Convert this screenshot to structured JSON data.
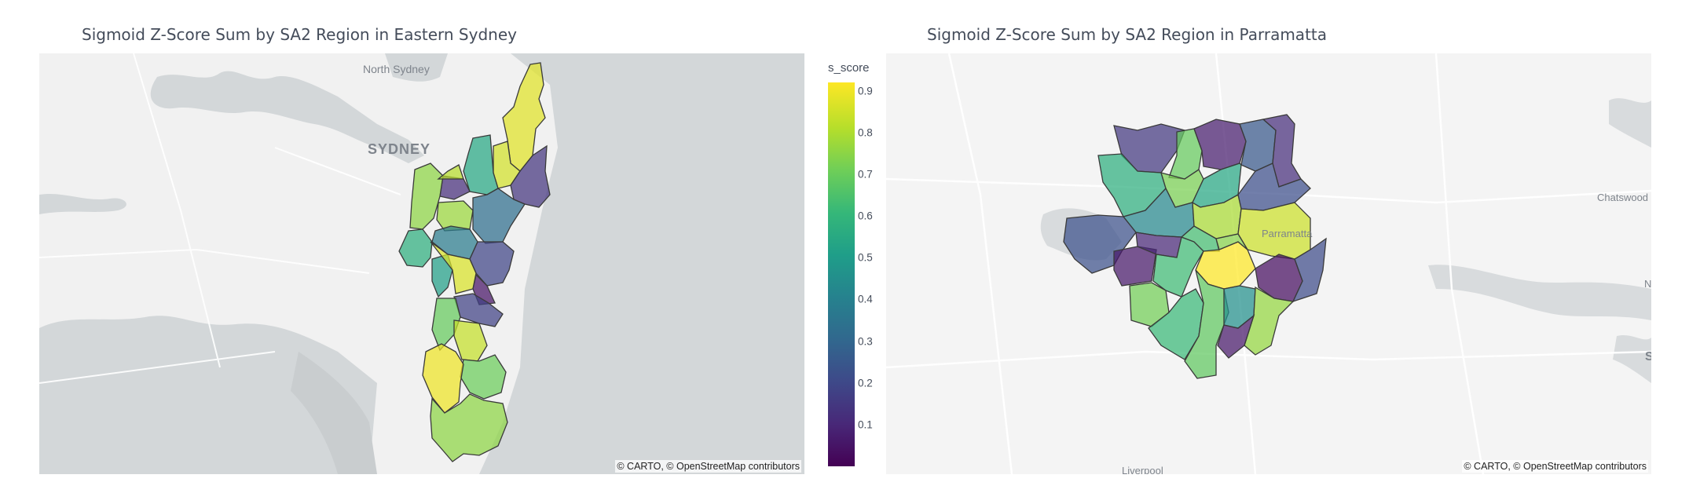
{
  "left_map": {
    "title": "Sigmoid Z-Score Sum by SA2 Region in Eastern Sydney",
    "labels": {
      "north_sydney": "North Sydney",
      "sydney": "SYDNEY"
    },
    "attribution": "© CARTO, © OpenStreetMap contributors",
    "colors": {
      "land": "#f1f1f1",
      "water": "#d3d7d9"
    }
  },
  "right_map": {
    "title": "Sigmoid Z-Score Sum by SA2 Region in Parramatta",
    "labels": {
      "parramatta": "Parramatta",
      "chatswood": "Chatswood",
      "liverpool": "Liverpool",
      "edge_n": "N",
      "edge_s": "S"
    },
    "attribution": "© CARTO, © OpenStreetMap contributors",
    "colors": {
      "land": "#f4f4f4",
      "water": "#d8dbdd"
    }
  },
  "colorbar": {
    "title": "s_score",
    "colorscale": "viridis",
    "range": [
      0.0,
      0.92
    ],
    "ticks": [
      "0.1",
      "0.2",
      "0.3",
      "0.4",
      "0.5",
      "0.6",
      "0.7",
      "0.8",
      "0.9"
    ]
  },
  "regions_left_scores": [
    0.88,
    0.86,
    0.55,
    0.14,
    0.12,
    0.76,
    0.78,
    0.82,
    0.33,
    0.38,
    0.19,
    0.58,
    0.52,
    0.87,
    0.05,
    0.18,
    0.7,
    0.84,
    0.71,
    0.9,
    0.76
  ],
  "regions_right_scores": [
    0.15,
    0.7,
    0.07,
    0.25,
    0.58,
    0.73,
    0.12,
    0.55,
    0.22,
    0.43,
    0.8,
    0.85,
    0.23,
    0.06,
    0.1,
    0.63,
    0.72,
    0.64,
    0.92,
    0.75,
    0.03,
    0.62,
    0.69,
    0.46,
    0.21,
    0.77,
    0.06
  ]
}
